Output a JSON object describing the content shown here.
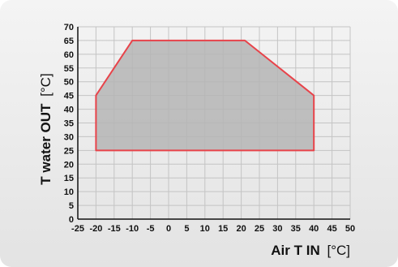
{
  "chart_data": {
    "type": "area",
    "title": "",
    "xlabel_bold": "Air T IN",
    "xlabel_unit": "[°C]",
    "ylabel_bold": "T water OUT",
    "ylabel_unit": "[°C]",
    "xlim": [
      -25,
      50
    ],
    "ylim": [
      0,
      70
    ],
    "x_ticks": [
      -25,
      -20,
      -15,
      -10,
      -5,
      0,
      5,
      10,
      15,
      20,
      25,
      30,
      35,
      40,
      45,
      50
    ],
    "y_ticks": [
      0,
      5,
      10,
      15,
      20,
      25,
      30,
      35,
      40,
      45,
      50,
      55,
      60,
      65,
      70
    ],
    "grid": true,
    "series": [
      {
        "points": [
          {
            "x": -20,
            "y": 25
          },
          {
            "x": -20,
            "y": 45
          },
          {
            "x": -10,
            "y": 65
          },
          {
            "x": 21,
            "y": 65
          },
          {
            "x": 40,
            "y": 45
          },
          {
            "x": 40,
            "y": 25
          }
        ]
      }
    ],
    "colors": {
      "outline": "#e8434a",
      "fill": "#b5b5b5",
      "grid": "#c4c4c4",
      "axis": "#111111"
    }
  }
}
